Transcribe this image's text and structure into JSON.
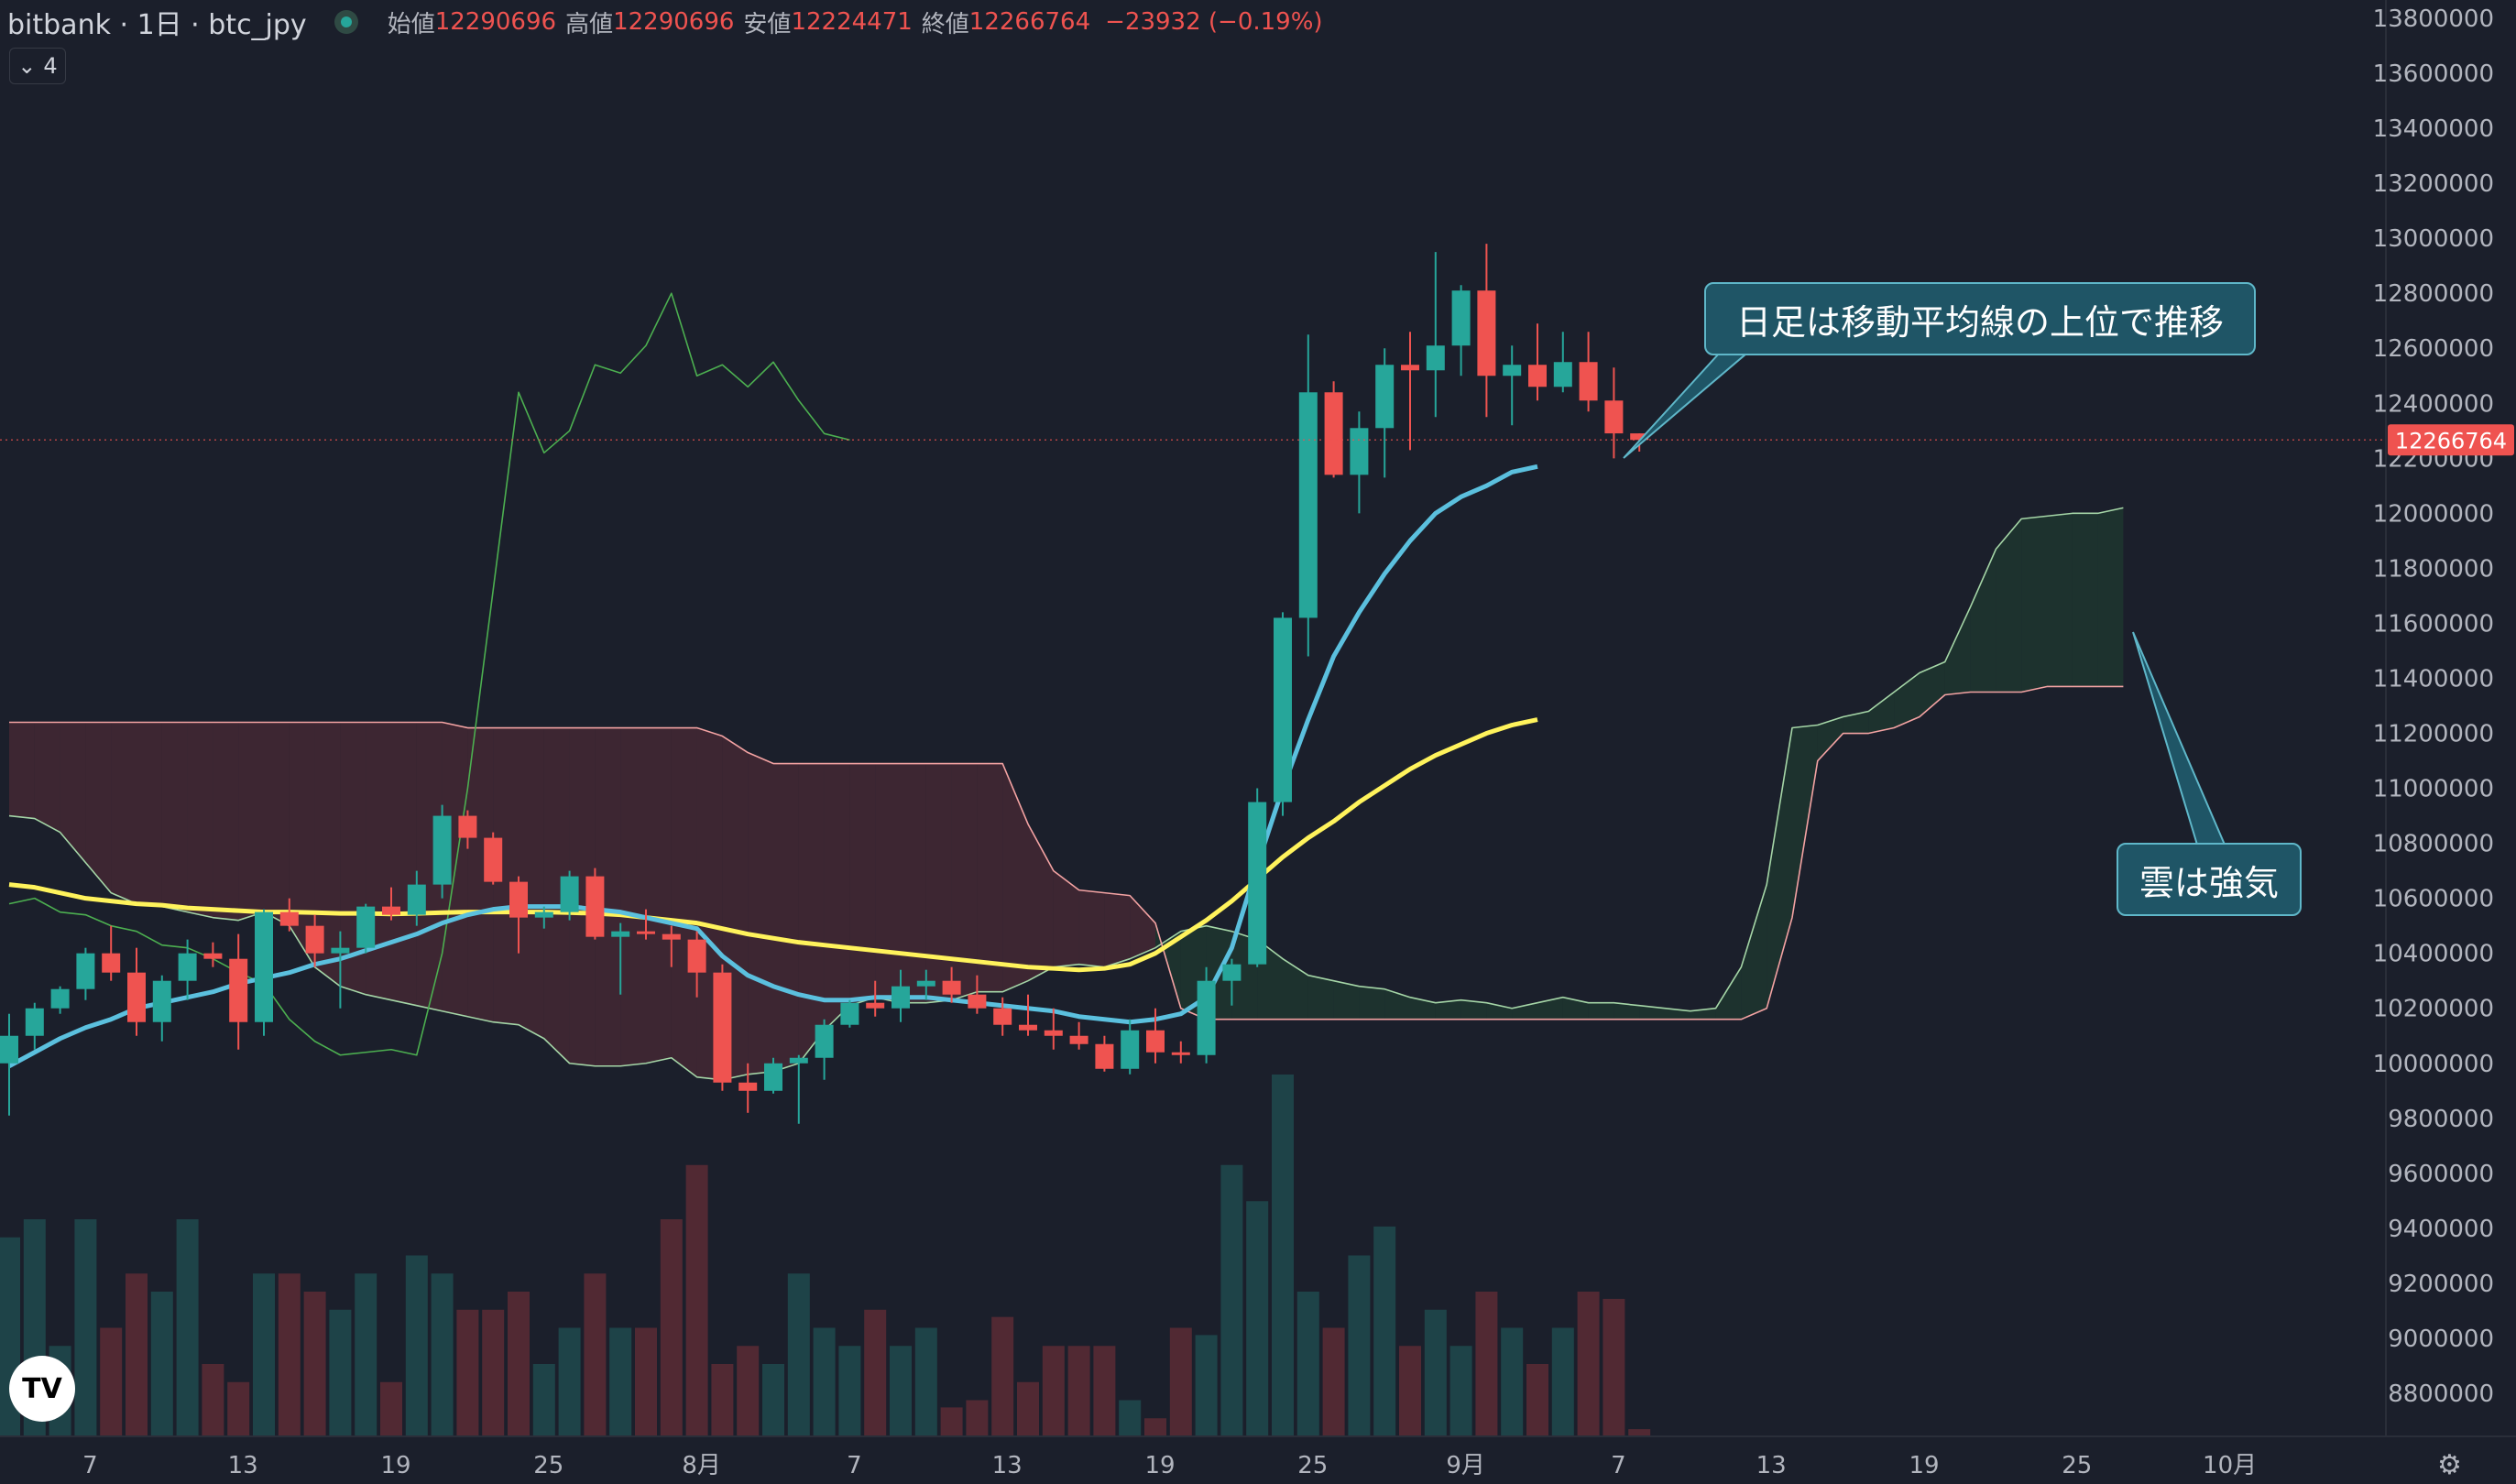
{
  "header": {
    "symbol": "bitbank · 1日 · btc_jpy",
    "open_label": "始値",
    "open": "12290696",
    "high_label": "高値",
    "high": "12290696",
    "low_label": "安値",
    "low": "12224471",
    "close_label": "終値",
    "close": "12266764",
    "change": "−23932 (−0.19%)",
    "indicator_count": "4"
  },
  "annotations": {
    "ma_note": "日足は移動平均線の上位で推移",
    "cloud_note": "雲は強気"
  },
  "colors": {
    "background": "#1b1f2b",
    "up": "#26a69a",
    "down": "#ef5350",
    "ma_short": "#5bc0de",
    "ma_long": "#fff35c",
    "lagging_span": "#4caf50",
    "span_a": "#a5d6a7",
    "span_b": "#f4a3a3",
    "cloud_bull": "#1f3a30",
    "cloud_bear": "#4a2a35"
  },
  "chart_data": {
    "type": "candlestick",
    "ylim": [
      8700000,
      13850000
    ],
    "yticks": [
      "13800000",
      "13600000",
      "13400000",
      "13200000",
      "13000000",
      "12800000",
      "12600000",
      "12400000",
      "12200000",
      "12000000",
      "11800000",
      "11600000",
      "11400000",
      "11200000",
      "11000000",
      "10800000",
      "10600000",
      "10400000",
      "10200000",
      "10000000",
      "9800000",
      "9600000",
      "9400000",
      "9200000",
      "9000000",
      "8800000"
    ],
    "xticks": [
      {
        "i": 3,
        "label": "7"
      },
      {
        "i": 9,
        "label": "13"
      },
      {
        "i": 15,
        "label": "19"
      },
      {
        "i": 21,
        "label": "25"
      },
      {
        "i": 27,
        "label": "8月"
      },
      {
        "i": 33,
        "label": "7"
      },
      {
        "i": 39,
        "label": "13"
      },
      {
        "i": 45,
        "label": "19"
      },
      {
        "i": 51,
        "label": "25"
      },
      {
        "i": 57,
        "label": "9月"
      },
      {
        "i": 63,
        "label": "7"
      },
      {
        "i": 69,
        "label": "13"
      },
      {
        "i": 75,
        "label": "19"
      },
      {
        "i": 81,
        "label": "25"
      },
      {
        "i": 87,
        "label": "10月"
      }
    ],
    "last_price_label": "12266764",
    "last_price": 12266764,
    "candles": [
      [
        10000000,
        10180000,
        9810000,
        10100000
      ],
      [
        10100000,
        10220000,
        10050000,
        10200000
      ],
      [
        10200000,
        10280000,
        10180000,
        10270000
      ],
      [
        10270000,
        10420000,
        10230000,
        10400000
      ],
      [
        10400000,
        10500000,
        10300000,
        10330000
      ],
      [
        10330000,
        10420000,
        10100000,
        10150000
      ],
      [
        10150000,
        10320000,
        10080000,
        10300000
      ],
      [
        10300000,
        10450000,
        10230000,
        10400000
      ],
      [
        10400000,
        10440000,
        10350000,
        10380000
      ],
      [
        10380000,
        10470000,
        10050000,
        10150000
      ],
      [
        10150000,
        10560000,
        10100000,
        10550000
      ],
      [
        10550000,
        10600000,
        10480000,
        10500000
      ],
      [
        10500000,
        10540000,
        10350000,
        10400000
      ],
      [
        10400000,
        10480000,
        10200000,
        10420000
      ],
      [
        10420000,
        10580000,
        10400000,
        10570000
      ],
      [
        10570000,
        10640000,
        10520000,
        10540000
      ],
      [
        10540000,
        10700000,
        10500000,
        10650000
      ],
      [
        10650000,
        10940000,
        10600000,
        10900000
      ],
      [
        10900000,
        10920000,
        10780000,
        10820000
      ],
      [
        10820000,
        10840000,
        10650000,
        10660000
      ],
      [
        10660000,
        10680000,
        10400000,
        10530000
      ],
      [
        10530000,
        10570000,
        10490000,
        10550000
      ],
      [
        10550000,
        10700000,
        10520000,
        10680000
      ],
      [
        10680000,
        10710000,
        10450000,
        10460000
      ],
      [
        10460000,
        10510000,
        10250000,
        10480000
      ],
      [
        10480000,
        10560000,
        10450000,
        10470000
      ],
      [
        10470000,
        10500000,
        10350000,
        10450000
      ],
      [
        10450000,
        10480000,
        10240000,
        10330000
      ],
      [
        10330000,
        10360000,
        9900000,
        9930000
      ],
      [
        9930000,
        10000000,
        9820000,
        9900000
      ],
      [
        9900000,
        10020000,
        9890000,
        10000000
      ],
      [
        10000000,
        10030000,
        9780000,
        10020000
      ],
      [
        10020000,
        10160000,
        9940000,
        10140000
      ],
      [
        10140000,
        10230000,
        10130000,
        10220000
      ],
      [
        10220000,
        10300000,
        10170000,
        10200000
      ],
      [
        10200000,
        10340000,
        10150000,
        10280000
      ],
      [
        10280000,
        10340000,
        10230000,
        10300000
      ],
      [
        10300000,
        10350000,
        10220000,
        10250000
      ],
      [
        10250000,
        10320000,
        10180000,
        10200000
      ],
      [
        10200000,
        10240000,
        10100000,
        10140000
      ],
      [
        10140000,
        10250000,
        10100000,
        10120000
      ],
      [
        10120000,
        10200000,
        10050000,
        10100000
      ],
      [
        10100000,
        10150000,
        10050000,
        10070000
      ],
      [
        10070000,
        10100000,
        9970000,
        9980000
      ],
      [
        9980000,
        10160000,
        9960000,
        10120000
      ],
      [
        10120000,
        10200000,
        10000000,
        10040000
      ],
      [
        10040000,
        10080000,
        10000000,
        10030000
      ],
      [
        10030000,
        10350000,
        10000000,
        10300000
      ],
      [
        10300000,
        10380000,
        10210000,
        10360000
      ],
      [
        10360000,
        11000000,
        10350000,
        10950000
      ],
      [
        10950000,
        11640000,
        10900000,
        11620000
      ],
      [
        11620000,
        12650000,
        11480000,
        12440000
      ],
      [
        12440000,
        12480000,
        12130000,
        12140000
      ],
      [
        12140000,
        12370000,
        12000000,
        12310000
      ],
      [
        12310000,
        12600000,
        12130000,
        12540000
      ],
      [
        12540000,
        12660000,
        12230000,
        12520000
      ],
      [
        12520000,
        12950000,
        12350000,
        12610000
      ],
      [
        12610000,
        12830000,
        12500000,
        12810000
      ],
      [
        12810000,
        12980000,
        12350000,
        12500000
      ],
      [
        12500000,
        12610000,
        12320000,
        12540000
      ],
      [
        12540000,
        12690000,
        12410000,
        12460000
      ],
      [
        12460000,
        12660000,
        12440000,
        12550000
      ],
      [
        12550000,
        12660000,
        12370000,
        12410000
      ],
      [
        12410000,
        12530000,
        12200000,
        12290696
      ],
      [
        12290696,
        12290696,
        12224471,
        12266764
      ]
    ],
    "volume_max_height": [
      0.55,
      0.6,
      0.25,
      0.6,
      0.3,
      0.45,
      0.4,
      0.6,
      0.2,
      0.15,
      0.45,
      0.45,
      0.4,
      0.35,
      0.45,
      0.15,
      0.5,
      0.45,
      0.35,
      0.35,
      0.4,
      0.2,
      0.3,
      0.45,
      0.3,
      0.3,
      0.6,
      0.75,
      0.2,
      0.25,
      0.2,
      0.45,
      0.3,
      0.25,
      0.35,
      0.25,
      0.3,
      0.08,
      0.1,
      0.33,
      0.15,
      0.25,
      0.25,
      0.25,
      0.1,
      0.05,
      0.3,
      0.28,
      0.75,
      0.65,
      1.0,
      0.4,
      0.3,
      0.5,
      0.58,
      0.25,
      0.35,
      0.25,
      0.4,
      0.3,
      0.2,
      0.3,
      0.4,
      0.38,
      0.02
    ],
    "ma_short": [
      9990000,
      10040000,
      10090000,
      10130000,
      10160000,
      10200000,
      10220000,
      10240000,
      10260000,
      10290000,
      10310000,
      10330000,
      10360000,
      10380000,
      10410000,
      10440000,
      10470000,
      10510000,
      10540000,
      10560000,
      10570000,
      10570000,
      10570000,
      10560000,
      10550000,
      10530000,
      10510000,
      10490000,
      10390000,
      10320000,
      10280000,
      10250000,
      10230000,
      10230000,
      10240000,
      10240000,
      10240000,
      10230000,
      10220000,
      10210000,
      10200000,
      10190000,
      10170000,
      10160000,
      10150000,
      10160000,
      10180000,
      10240000,
      10420000,
      10720000,
      11000000,
      11250000,
      11480000,
      11640000,
      11780000,
      11900000,
      12000000,
      12060000,
      12100000,
      12150000,
      12170000
    ],
    "ma_long": [
      10650000,
      10640000,
      10620000,
      10600000,
      10590000,
      10580000,
      10575000,
      10565000,
      10560000,
      10555000,
      10550000,
      10550000,
      10548000,
      10545000,
      10545000,
      10543000,
      10545000,
      10548000,
      10550000,
      10550000,
      10550000,
      10550000,
      10548000,
      10545000,
      10540000,
      10530000,
      10520000,
      10510000,
      10490000,
      10470000,
      10455000,
      10440000,
      10430000,
      10420000,
      10410000,
      10400000,
      10390000,
      10380000,
      10370000,
      10360000,
      10350000,
      10345000,
      10340000,
      10345000,
      10360000,
      10400000,
      10460000,
      10520000,
      10590000,
      10670000,
      10750000,
      10820000,
      10880000,
      10950000,
      11010000,
      11070000,
      11120000,
      11160000,
      11200000,
      11230000,
      11250000
    ],
    "lagging_span": [
      10580000,
      10600000,
      10550000,
      10540000,
      10500000,
      10480000,
      10430000,
      10420000,
      10380000,
      10330000,
      10290000,
      10160000,
      10080000,
      10030000,
      10040000,
      10050000,
      10030000,
      10400000,
      11000000,
      11720000,
      12440000,
      12220000,
      12300000,
      12540000,
      12510000,
      12610000,
      12800000,
      12500000,
      12540000,
      12460000,
      12550000,
      12410000,
      12290000,
      12266764
    ],
    "span_a_start": 0,
    "span_a": [
      10900000,
      10890000,
      10840000,
      10730000,
      10620000,
      10580000,
      10570000,
      10550000,
      10530000,
      10520000,
      10550000,
      10500000,
      10350000,
      10280000,
      10250000,
      10230000,
      10210000,
      10190000,
      10170000,
      10150000,
      10140000,
      10090000,
      10000000,
      9990000,
      9990000,
      10000000,
      10020000,
      9950000,
      9940000,
      9960000,
      9970000,
      10000000,
      10120000,
      10210000,
      10240000,
      10220000,
      10220000,
      10230000,
      10260000,
      10260000,
      10300000,
      10350000,
      10360000,
      10350000,
      10380000,
      10420000,
      10480000,
      10500000,
      10480000,
      10450000,
      10380000,
      10320000,
      10300000,
      10280000,
      10270000,
      10240000,
      10220000,
      10230000,
      10220000,
      10200000,
      10220000,
      10240000,
      10220000,
      10220000,
      10210000,
      10200000,
      10190000,
      10200000,
      10350000,
      10650000,
      11220000,
      11230000,
      11260000,
      11280000,
      11350000,
      11420000,
      11460000,
      11660000,
      11870000,
      11980000,
      11990000,
      12000000,
      12000000,
      12020000
    ],
    "span_b": [
      11240000,
      11240000,
      11240000,
      11240000,
      11240000,
      11240000,
      11240000,
      11240000,
      11240000,
      11240000,
      11240000,
      11240000,
      11240000,
      11240000,
      11240000,
      11240000,
      11240000,
      11240000,
      11220000,
      11220000,
      11220000,
      11220000,
      11220000,
      11220000,
      11220000,
      11220000,
      11220000,
      11220000,
      11190000,
      11130000,
      11090000,
      11090000,
      11090000,
      11090000,
      11090000,
      11090000,
      11090000,
      11090000,
      11090000,
      11090000,
      10870000,
      10700000,
      10630000,
      10620000,
      10610000,
      10510000,
      10200000,
      10160000,
      10160000,
      10160000,
      10160000,
      10160000,
      10160000,
      10160000,
      10160000,
      10160000,
      10160000,
      10160000,
      10160000,
      10160000,
      10160000,
      10160000,
      10160000,
      10160000,
      10160000,
      10160000,
      10160000,
      10160000,
      10160000,
      10200000,
      10530000,
      11100000,
      11200000,
      11200000,
      11220000,
      11260000,
      11340000,
      11350000,
      11350000,
      11350000,
      11370000,
      11370000,
      11370000,
      11370000
    ]
  }
}
